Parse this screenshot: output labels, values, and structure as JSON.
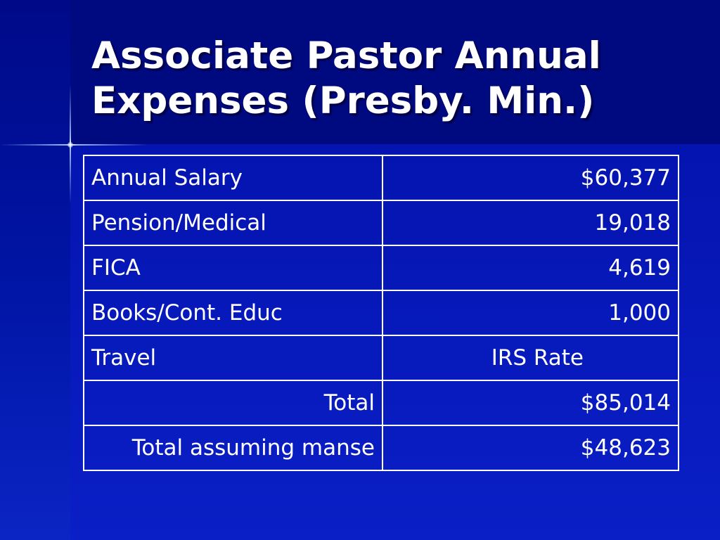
{
  "slide": {
    "title_line1": "Associate Pastor Annual",
    "title_line2": "Expenses (Presby. Min.)"
  },
  "table": {
    "rows": [
      {
        "label": "Annual Salary",
        "value": "$60,377"
      },
      {
        "label": "Pension/Medical",
        "value": "19,018"
      },
      {
        "label": "FICA",
        "value": "4,619"
      },
      {
        "label": "Books/Cont. Educ",
        "value": "1,000"
      },
      {
        "label": "Travel",
        "value": "IRS Rate"
      },
      {
        "label": "Total",
        "value": "$85,014"
      },
      {
        "label": "Total assuming manse",
        "value": "$48,623"
      }
    ]
  },
  "colors": {
    "background": "#000a80",
    "text": "#ffffff",
    "border": "#ffffff"
  }
}
